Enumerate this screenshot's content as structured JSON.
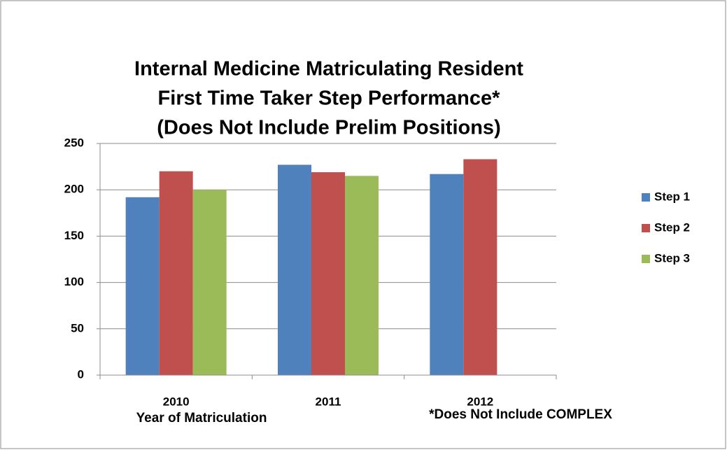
{
  "chart_data": {
    "type": "bar",
    "title": [
      "Internal Medicine Matriculating Resident",
      "First Time Taker Step Performance*",
      "(Does Not Include Prelim Positions)"
    ],
    "x_label": "Year of Matriculation",
    "annotation": "*Does Not Include COMPLEX",
    "categories": [
      "2010",
      "2011",
      "2012"
    ],
    "series": [
      {
        "name": "Step 1",
        "color": "#4f81bd",
        "values": [
          192,
          227,
          217
        ]
      },
      {
        "name": "Step 2",
        "color": "#c0504d",
        "values": [
          220,
          219,
          233
        ]
      },
      {
        "name": "Step 3",
        "color": "#9bbb59",
        "values": [
          200,
          215,
          null
        ]
      }
    ],
    "ylim": [
      0,
      250
    ],
    "yticks": [
      0,
      50,
      100,
      150,
      200,
      250
    ],
    "grid": true,
    "legend": "right"
  }
}
